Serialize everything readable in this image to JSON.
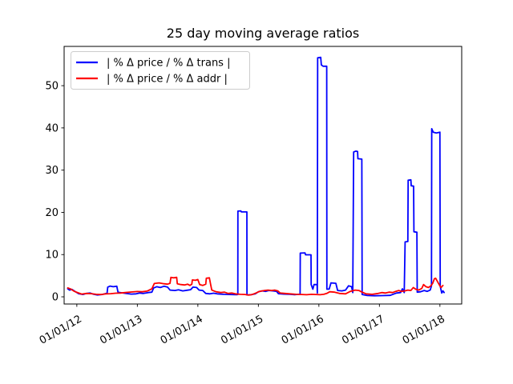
{
  "chart_data": {
    "type": "line",
    "title": "25 day moving average ratios",
    "xlabel": "",
    "ylabel": "",
    "grid": false,
    "legend_position": "upper-left",
    "x_tick_labels": [
      "01/01/12",
      "01/01/13",
      "01/01/14",
      "01/01/15",
      "01/01/16",
      "01/01/17",
      "01/01/18"
    ],
    "x_tick_positions": [
      0,
      1,
      2,
      3,
      4,
      5,
      6
    ],
    "y_ticks": [
      0,
      10,
      20,
      30,
      40,
      50
    ],
    "x_range": [
      -0.21,
      6.36
    ],
    "y_range": [
      -1.7,
      59.3
    ],
    "series": [
      {
        "name": "| % Δ price / % Δ trans |",
        "color": "#0000ff",
        "points": [
          [
            -0.15,
            1.9
          ],
          [
            -0.12,
            1.6
          ],
          [
            -0.08,
            1.75
          ],
          [
            -0.02,
            1.2
          ],
          [
            0.03,
            0.75
          ],
          [
            0.1,
            0.55
          ],
          [
            0.16,
            0.8
          ],
          [
            0.22,
            0.9
          ],
          [
            0.28,
            0.6
          ],
          [
            0.34,
            0.45
          ],
          [
            0.42,
            0.55
          ],
          [
            0.5,
            0.85
          ],
          [
            0.51,
            2.3
          ],
          [
            0.55,
            2.55
          ],
          [
            0.6,
            2.4
          ],
          [
            0.66,
            2.5
          ],
          [
            0.68,
            1.1
          ],
          [
            0.74,
            0.95
          ],
          [
            0.82,
            0.8
          ],
          [
            0.9,
            0.65
          ],
          [
            0.98,
            0.7
          ],
          [
            1.04,
            0.9
          ],
          [
            1.1,
            0.8
          ],
          [
            1.18,
            1.0
          ],
          [
            1.24,
            1.1
          ],
          [
            1.27,
            2.1
          ],
          [
            1.32,
            2.4
          ],
          [
            1.38,
            2.2
          ],
          [
            1.44,
            2.5
          ],
          [
            1.5,
            2.3
          ],
          [
            1.54,
            1.6
          ],
          [
            1.62,
            1.5
          ],
          [
            1.68,
            1.65
          ],
          [
            1.75,
            1.4
          ],
          [
            1.82,
            1.55
          ],
          [
            1.88,
            1.7
          ],
          [
            1.92,
            2.3
          ],
          [
            1.98,
            2.2
          ],
          [
            2.02,
            1.6
          ],
          [
            2.08,
            1.5
          ],
          [
            2.13,
            0.8
          ],
          [
            2.2,
            0.7
          ],
          [
            2.26,
            0.85
          ],
          [
            2.32,
            0.7
          ],
          [
            2.42,
            0.6
          ],
          [
            2.52,
            0.55
          ],
          [
            2.64,
            0.5
          ],
          [
            2.66,
            0.55
          ],
          [
            2.662,
            20.3
          ],
          [
            2.71,
            20.35
          ],
          [
            2.72,
            20.1
          ],
          [
            2.81,
            20.1
          ],
          [
            2.812,
            0.45
          ],
          [
            2.88,
            0.5
          ],
          [
            2.95,
            0.7
          ],
          [
            3.0,
            1.2
          ],
          [
            3.06,
            1.4
          ],
          [
            3.12,
            1.3
          ],
          [
            3.17,
            1.5
          ],
          [
            3.24,
            1.4
          ],
          [
            3.3,
            1.3
          ],
          [
            3.33,
            0.75
          ],
          [
            3.42,
            0.65
          ],
          [
            3.52,
            0.6
          ],
          [
            3.6,
            0.5
          ],
          [
            3.66,
            0.6
          ],
          [
            3.69,
            0.6
          ],
          [
            3.692,
            10.35
          ],
          [
            3.77,
            10.4
          ],
          [
            3.78,
            9.95
          ],
          [
            3.87,
            9.95
          ],
          [
            3.872,
            2.9
          ],
          [
            3.9,
            1.8
          ],
          [
            3.92,
            2.9
          ],
          [
            3.97,
            2.9
          ],
          [
            3.975,
            0.9
          ],
          [
            3.98,
            56.6
          ],
          [
            4.03,
            56.7
          ],
          [
            4.04,
            54.9
          ],
          [
            4.07,
            54.6
          ],
          [
            4.13,
            54.6
          ],
          [
            4.132,
            1.8
          ],
          [
            4.17,
            1.85
          ],
          [
            4.2,
            3.3
          ],
          [
            4.28,
            3.2
          ],
          [
            4.31,
            1.5
          ],
          [
            4.38,
            1.4
          ],
          [
            4.44,
            1.6
          ],
          [
            4.49,
            2.6
          ],
          [
            4.54,
            2.4
          ],
          [
            4.56,
            1.0
          ],
          [
            4.575,
            34.3
          ],
          [
            4.61,
            34.5
          ],
          [
            4.64,
            34.4
          ],
          [
            4.645,
            32.7
          ],
          [
            4.71,
            32.6
          ],
          [
            4.715,
            0.55
          ],
          [
            4.8,
            0.3
          ],
          [
            4.92,
            0.25
          ],
          [
            5.05,
            0.28
          ],
          [
            5.18,
            0.35
          ],
          [
            5.28,
            0.9
          ],
          [
            5.35,
            1.0
          ],
          [
            5.38,
            1.9
          ],
          [
            5.41,
            1.0
          ],
          [
            5.425,
            13.0
          ],
          [
            5.47,
            13.1
          ],
          [
            5.475,
            27.6
          ],
          [
            5.52,
            27.7
          ],
          [
            5.525,
            26.3
          ],
          [
            5.565,
            26.2
          ],
          [
            5.57,
            15.4
          ],
          [
            5.62,
            15.3
          ],
          [
            5.625,
            1.1
          ],
          [
            5.68,
            1.2
          ],
          [
            5.74,
            1.5
          ],
          [
            5.79,
            1.3
          ],
          [
            5.84,
            1.6
          ],
          [
            5.86,
            2.6
          ],
          [
            5.865,
            39.8
          ],
          [
            5.89,
            39.0
          ],
          [
            5.94,
            38.8
          ],
          [
            6.0,
            39.0
          ],
          [
            6.005,
            2.5
          ],
          [
            6.03,
            0.9
          ],
          [
            6.05,
            1.4
          ],
          [
            6.07,
            1.0
          ]
        ]
      },
      {
        "name": "| % Δ price / % Δ addr |",
        "color": "#ff0000",
        "points": [
          [
            -0.15,
            2.1
          ],
          [
            -0.1,
            1.85
          ],
          [
            -0.04,
            1.3
          ],
          [
            0.02,
            0.95
          ],
          [
            0.08,
            0.65
          ],
          [
            0.16,
            0.8
          ],
          [
            0.24,
            0.75
          ],
          [
            0.32,
            0.6
          ],
          [
            0.4,
            0.55
          ],
          [
            0.48,
            0.7
          ],
          [
            0.56,
            0.75
          ],
          [
            0.64,
            0.85
          ],
          [
            0.72,
            0.9
          ],
          [
            0.8,
            1.0
          ],
          [
            0.9,
            1.15
          ],
          [
            1.0,
            1.25
          ],
          [
            1.08,
            1.2
          ],
          [
            1.16,
            1.35
          ],
          [
            1.24,
            1.9
          ],
          [
            1.28,
            3.15
          ],
          [
            1.36,
            3.3
          ],
          [
            1.44,
            3.1
          ],
          [
            1.5,
            3.0
          ],
          [
            1.54,
            3.2
          ],
          [
            1.555,
            4.6
          ],
          [
            1.6,
            4.5
          ],
          [
            1.65,
            4.6
          ],
          [
            1.66,
            3.1
          ],
          [
            1.72,
            2.9
          ],
          [
            1.78,
            2.8
          ],
          [
            1.83,
            3.0
          ],
          [
            1.87,
            2.7
          ],
          [
            1.9,
            3.0
          ],
          [
            1.91,
            4.0
          ],
          [
            1.96,
            3.9
          ],
          [
            2.0,
            4.1
          ],
          [
            2.03,
            2.9
          ],
          [
            2.08,
            2.7
          ],
          [
            2.13,
            3.0
          ],
          [
            2.14,
            4.4
          ],
          [
            2.19,
            4.5
          ],
          [
            2.21,
            3.0
          ],
          [
            2.23,
            1.6
          ],
          [
            2.3,
            1.2
          ],
          [
            2.38,
            1.0
          ],
          [
            2.44,
            1.1
          ],
          [
            2.5,
            0.8
          ],
          [
            2.56,
            0.9
          ],
          [
            2.62,
            0.7
          ],
          [
            2.7,
            0.6
          ],
          [
            2.78,
            0.55
          ],
          [
            2.84,
            0.4
          ],
          [
            2.9,
            0.55
          ],
          [
            2.96,
            0.9
          ],
          [
            3.02,
            1.3
          ],
          [
            3.1,
            1.5
          ],
          [
            3.16,
            1.6
          ],
          [
            3.22,
            1.5
          ],
          [
            3.27,
            1.6
          ],
          [
            3.32,
            1.4
          ],
          [
            3.36,
            0.9
          ],
          [
            3.44,
            0.8
          ],
          [
            3.52,
            0.7
          ],
          [
            3.62,
            0.6
          ],
          [
            3.72,
            0.55
          ],
          [
            3.8,
            0.5
          ],
          [
            3.88,
            0.6
          ],
          [
            3.95,
            0.55
          ],
          [
            4.02,
            0.5
          ],
          [
            4.08,
            0.6
          ],
          [
            4.13,
            0.8
          ],
          [
            4.18,
            1.2
          ],
          [
            4.26,
            1.1
          ],
          [
            4.34,
            0.8
          ],
          [
            4.44,
            0.7
          ],
          [
            4.52,
            1.3
          ],
          [
            4.6,
            1.6
          ],
          [
            4.66,
            1.5
          ],
          [
            4.7,
            1.2
          ],
          [
            4.78,
            0.7
          ],
          [
            4.88,
            0.6
          ],
          [
            4.98,
            0.8
          ],
          [
            5.04,
            1.0
          ],
          [
            5.1,
            0.9
          ],
          [
            5.16,
            1.1
          ],
          [
            5.22,
            1.0
          ],
          [
            5.27,
            1.3
          ],
          [
            5.32,
            1.5
          ],
          [
            5.36,
            1.3
          ],
          [
            5.42,
            1.4
          ],
          [
            5.47,
            1.6
          ],
          [
            5.52,
            1.5
          ],
          [
            5.56,
            2.2
          ],
          [
            5.6,
            1.8
          ],
          [
            5.65,
            1.6
          ],
          [
            5.7,
            2.0
          ],
          [
            5.73,
            2.9
          ],
          [
            5.77,
            2.4
          ],
          [
            5.81,
            2.2
          ],
          [
            5.85,
            2.6
          ],
          [
            5.88,
            3.2
          ],
          [
            5.91,
            4.3
          ],
          [
            5.93,
            4.4
          ],
          [
            5.96,
            3.6
          ],
          [
            6.0,
            2.6
          ],
          [
            6.02,
            2.2
          ],
          [
            6.05,
            2.7
          ]
        ]
      }
    ],
    "colors": {
      "axis": "#000000",
      "background": "#ffffff",
      "legend_border": "#cccccc"
    }
  }
}
